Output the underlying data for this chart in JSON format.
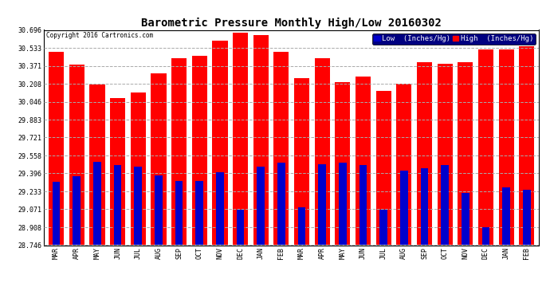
{
  "title": "Barometric Pressure Monthly High/Low 20160302",
  "copyright": "Copyright 2016 Cartronics.com",
  "legend_low": "Low  (Inches/Hg)",
  "legend_high": "High  (Inches/Hg)",
  "months": [
    "MAR",
    "APR",
    "MAY",
    "JUN",
    "JUL",
    "AUG",
    "SEP",
    "OCT",
    "NOV",
    "DEC",
    "JAN",
    "FEB",
    "MAR",
    "APR",
    "MAY",
    "JUN",
    "JUL",
    "AUG",
    "SEP",
    "OCT",
    "NOV",
    "DEC",
    "JAN",
    "FEB"
  ],
  "high_values": [
    30.5,
    30.38,
    30.2,
    30.08,
    30.13,
    30.3,
    30.44,
    30.46,
    30.6,
    30.67,
    30.65,
    30.5,
    30.26,
    30.44,
    30.22,
    30.27,
    30.14,
    30.21,
    30.4,
    30.39,
    30.4,
    30.52,
    30.52,
    30.55
  ],
  "low_values": [
    29.32,
    29.37,
    29.5,
    29.47,
    29.46,
    29.38,
    29.33,
    29.33,
    29.41,
    29.07,
    29.46,
    29.49,
    29.09,
    29.48,
    29.49,
    29.47,
    29.07,
    29.42,
    29.44,
    29.47,
    29.22,
    28.91,
    29.27,
    29.25
  ],
  "ymin": 28.746,
  "ymax": 30.696,
  "yticks": [
    28.746,
    28.908,
    29.071,
    29.233,
    29.396,
    29.558,
    29.721,
    29.883,
    30.046,
    30.208,
    30.371,
    30.533,
    30.696
  ],
  "high_color": "#ff0000",
  "low_color": "#0000cc",
  "background_color": "#ffffff",
  "grid_color": "#aaaaaa",
  "title_fontsize": 10,
  "tick_fontsize": 6,
  "legend_fontsize": 6.5,
  "legend_bg": "#000080"
}
